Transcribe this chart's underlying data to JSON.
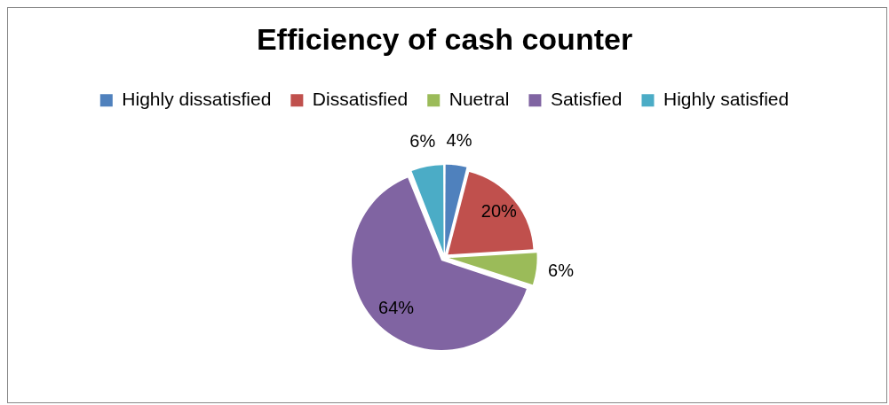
{
  "chart_data": {
    "type": "pie",
    "title": "Efficiency of cash counter",
    "categories": [
      "Highly dissatisfied",
      "Dissatisfied",
      "Nuetral",
      "Satisfied",
      "Highly satisfied"
    ],
    "values": [
      4,
      20,
      6,
      64,
      6
    ],
    "colors": [
      "#4f81bd",
      "#c0504d",
      "#9bbb59",
      "#8064a2",
      "#4bacc6"
    ],
    "value_labels": [
      "4%",
      "20%",
      "6%",
      "64%",
      "6%"
    ],
    "legend": "top"
  }
}
